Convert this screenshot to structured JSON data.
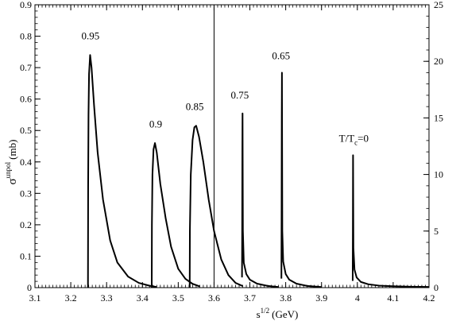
{
  "chart_data": {
    "type": "line",
    "xlabel": "s",
    "xlabel_sup": "1/2",
    "xlabel_unit": "(GeV)",
    "ylabel": "σ",
    "ylabel_sup": "unpol",
    "ylabel_unit": "(mb)",
    "xlim": [
      3.1,
      4.2
    ],
    "ylim_left": [
      0,
      0.9
    ],
    "ylim_right": [
      0,
      25
    ],
    "divider_x": 3.6,
    "x_ticks": [
      "3.1",
      "3.2",
      "3.3",
      "3.4",
      "3.5",
      "3.6",
      "3.7",
      "3.8",
      "3.9",
      "4",
      "4.1",
      "4.2"
    ],
    "y_ticks_left": [
      "0",
      "0.1",
      "0.2",
      "0.3",
      "0.4",
      "0.5",
      "0.6",
      "0.7",
      "0.8",
      "0.9"
    ],
    "y_ticks_right": [
      "0",
      "5",
      "10",
      "15",
      "20",
      "25"
    ],
    "grid": false,
    "legend": "none",
    "series": [
      {
        "name": "0.95",
        "axis": "left",
        "points": [
          [
            3.248,
            0
          ],
          [
            3.2485,
            0.32
          ],
          [
            3.2495,
            0.55
          ],
          [
            3.251,
            0.68
          ],
          [
            3.254,
            0.74
          ],
          [
            3.258,
            0.7
          ],
          [
            3.265,
            0.58
          ],
          [
            3.275,
            0.43
          ],
          [
            3.29,
            0.28
          ],
          [
            3.31,
            0.15
          ],
          [
            3.33,
            0.08
          ],
          [
            3.36,
            0.035
          ],
          [
            3.39,
            0.015
          ],
          [
            3.42,
            0.006
          ],
          [
            3.44,
            0.002
          ]
        ]
      },
      {
        "name": "0.9",
        "axis": "left",
        "points": [
          [
            3.426,
            0
          ],
          [
            3.4265,
            0.2
          ],
          [
            3.428,
            0.36
          ],
          [
            3.431,
            0.44
          ],
          [
            3.435,
            0.46
          ],
          [
            3.44,
            0.43
          ],
          [
            3.45,
            0.33
          ],
          [
            3.465,
            0.22
          ],
          [
            3.48,
            0.13
          ],
          [
            3.5,
            0.06
          ],
          [
            3.52,
            0.028
          ],
          [
            3.54,
            0.012
          ],
          [
            3.56,
            0.004
          ]
        ]
      },
      {
        "name": "0.85",
        "axis": "left",
        "points": [
          [
            3.532,
            0
          ],
          [
            3.5325,
            0.18
          ],
          [
            3.535,
            0.36
          ],
          [
            3.54,
            0.47
          ],
          [
            3.545,
            0.51
          ],
          [
            3.55,
            0.515
          ],
          [
            3.558,
            0.48
          ],
          [
            3.57,
            0.4
          ],
          [
            3.585,
            0.28
          ],
          [
            3.6,
            0.18
          ],
          [
            3.62,
            0.09
          ],
          [
            3.64,
            0.04
          ],
          [
            3.66,
            0.015
          ],
          [
            3.68,
            0.005
          ]
        ]
      },
      {
        "name": "0.75",
        "axis": "right",
        "points": [
          [
            3.678,
            0.9
          ],
          [
            3.6785,
            5
          ],
          [
            3.679,
            12
          ],
          [
            3.6795,
            15.4
          ],
          [
            3.6805,
            5
          ],
          [
            3.683,
            2.2
          ],
          [
            3.69,
            1.2
          ],
          [
            3.7,
            0.7
          ],
          [
            3.72,
            0.35
          ],
          [
            3.75,
            0.15
          ],
          [
            3.78,
            0.05
          ]
        ]
      },
      {
        "name": "0.65",
        "axis": "right",
        "points": [
          [
            3.788,
            0.8
          ],
          [
            3.7885,
            6
          ],
          [
            3.789,
            15
          ],
          [
            3.7895,
            19.0
          ],
          [
            3.7905,
            5
          ],
          [
            3.793,
            2.3
          ],
          [
            3.8,
            1.2
          ],
          [
            3.81,
            0.7
          ],
          [
            3.83,
            0.35
          ],
          [
            3.86,
            0.15
          ],
          [
            3.9,
            0.05
          ]
        ]
      },
      {
        "name": "T/T_c=0",
        "axis": "right",
        "points": [
          [
            3.987,
            0.6
          ],
          [
            3.9875,
            5
          ],
          [
            3.988,
            11.7
          ],
          [
            3.989,
            3.5
          ],
          [
            3.992,
            1.6
          ],
          [
            3.998,
            0.9
          ],
          [
            4.01,
            0.5
          ],
          [
            4.03,
            0.3
          ],
          [
            4.06,
            0.18
          ],
          [
            4.1,
            0.12
          ],
          [
            4.15,
            0.08
          ],
          [
            4.2,
            0.06
          ]
        ]
      }
    ],
    "annotations": [
      {
        "text": "0.95",
        "x": 3.255,
        "y": 0.79,
        "axis": "left"
      },
      {
        "text": "0.9",
        "x": 3.437,
        "y": 0.51,
        "axis": "left"
      },
      {
        "text": "0.85",
        "x": 3.546,
        "y": 0.565,
        "axis": "left"
      },
      {
        "text": "0.75",
        "x": 3.672,
        "y": 16.7,
        "axis": "right"
      },
      {
        "text": "0.65",
        "x": 3.787,
        "y": 20.2,
        "axis": "right"
      }
    ],
    "annotation_tc": {
      "prefix": "T/T",
      "sub": "c",
      "suffix": "=0",
      "x": 3.99,
      "y": 12.9,
      "axis": "right"
    }
  }
}
